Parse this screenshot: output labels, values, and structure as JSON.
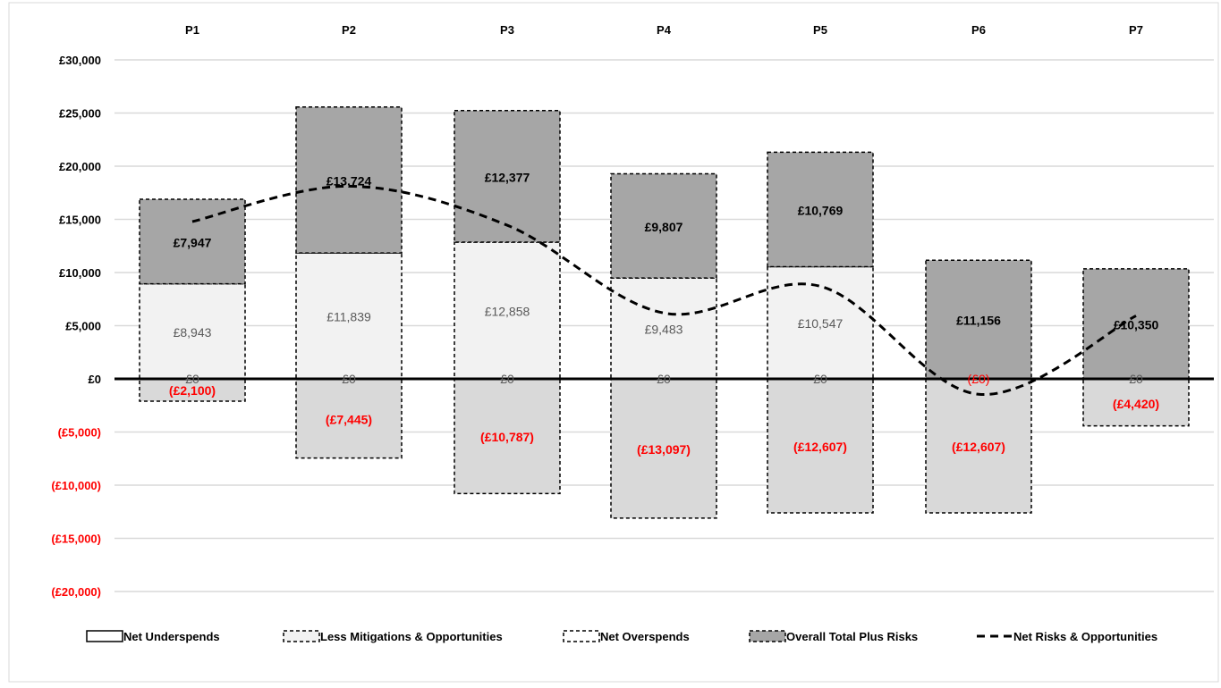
{
  "chart_data": {
    "type": "bar",
    "categories": [
      "P1",
      "P2",
      "P3",
      "P4",
      "P5",
      "P6",
      "P7"
    ],
    "ylim": [
      -20000,
      30000
    ],
    "yticks": [
      {
        "value": 30000,
        "label": "£30,000"
      },
      {
        "value": 25000,
        "label": "£25,000"
      },
      {
        "value": 20000,
        "label": "£20,000"
      },
      {
        "value": 15000,
        "label": "£15,000"
      },
      {
        "value": 10000,
        "label": "£10,000"
      },
      {
        "value": 5000,
        "label": "£5,000"
      },
      {
        "value": 0,
        "label": "£0"
      },
      {
        "value": -5000,
        "label": "(£5,000)"
      },
      {
        "value": -10000,
        "label": "(£10,000)"
      },
      {
        "value": -15000,
        "label": "(£15,000)"
      },
      {
        "value": -20000,
        "label": "(£20,000)"
      }
    ],
    "grid": true,
    "legend_position": "bottom",
    "series": [
      {
        "name": "Net Underspends",
        "kind": "stack-base",
        "values": [
          0,
          0,
          0,
          0,
          0,
          0,
          0
        ],
        "labels": [
          "£0",
          "£0",
          "£0",
          "£0",
          "£0",
          "",
          "£0"
        ],
        "color": "#ffffff"
      },
      {
        "name": "Less Mitigations & Opportunities",
        "kind": "stack-positive",
        "values": [
          8943,
          11839,
          12858,
          9483,
          10547,
          0,
          0
        ],
        "labels": [
          "£8,943",
          "£11,839",
          "£12,858",
          "£9,483",
          "£10,547",
          "",
          ""
        ],
        "color": "#f2f2f2"
      },
      {
        "name": "Net Overspends",
        "kind": "negative",
        "values": [
          -2100,
          -7445,
          -10787,
          -13097,
          -12607,
          -12607,
          -4420
        ],
        "labels": [
          "(£2,100)",
          "(£7,445)",
          "(£10,787)",
          "(£13,097)",
          "(£12,607)",
          "(£12,607)",
          "(£4,420)"
        ],
        "color": "#d9d9d9"
      },
      {
        "name": "Overall Total Plus Risks",
        "kind": "stack-top",
        "values": [
          7947,
          13724,
          12377,
          9807,
          10769,
          11156,
          10350
        ],
        "labels": [
          "£7,947",
          "£13,724",
          "£12,377",
          "£9,807",
          "£10,769",
          "£11,156",
          "£10,350"
        ],
        "color": "#a6a6a6"
      },
      {
        "name": "Net Risks & Opportunities",
        "kind": "line",
        "values": [
          14790,
          18118,
          14448,
          6193,
          8709,
          -1451,
          5930
        ],
        "color": "#000000"
      }
    ],
    "extra_labels": [
      {
        "category": "P6",
        "text": "(£0)"
      }
    ],
    "colors": {
      "negative_text": "#ff0000",
      "positive_text": "#000000",
      "muted_text": "#595959"
    }
  }
}
